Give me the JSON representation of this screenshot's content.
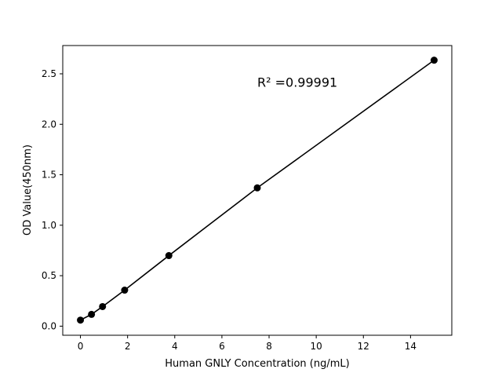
{
  "chart_data": {
    "type": "line",
    "title": "",
    "xlabel": "Human GNLY Concentration (ng/mL)",
    "ylabel": "OD Value(450nm)",
    "xlim": [
      -0.75,
      15.75
    ],
    "ylim": [
      -0.09,
      2.78
    ],
    "xticks": [
      0,
      2,
      4,
      6,
      8,
      10,
      12,
      14
    ],
    "yticks": [
      "0.0",
      "0.5",
      "1.0",
      "1.5",
      "2.0",
      "2.5"
    ],
    "grid": false,
    "annotation": "R² =0.99991",
    "annotation_pos": [
      7.5,
      2.37
    ],
    "series": [
      {
        "x": [
          0,
          0.469,
          0.938,
          1.875,
          3.75,
          7.5,
          15
        ],
        "y": [
          0.06,
          0.117,
          0.194,
          0.357,
          0.699,
          1.37,
          2.635
        ],
        "color": "#000000",
        "marker": "circle"
      }
    ]
  }
}
